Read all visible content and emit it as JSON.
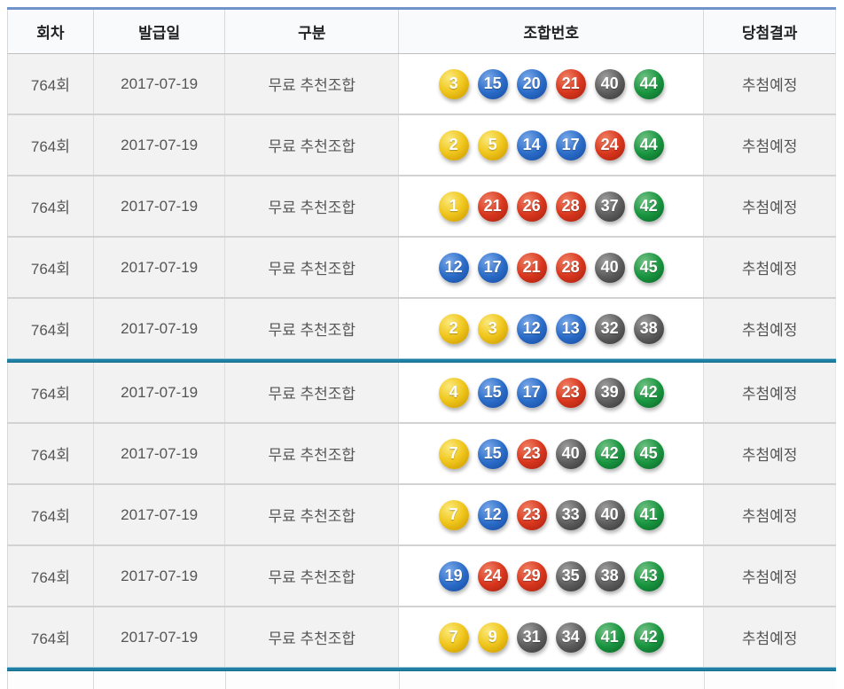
{
  "table": {
    "columns": [
      {
        "key": "round",
        "label": "회차"
      },
      {
        "key": "issue_date",
        "label": "발급일"
      },
      {
        "key": "category",
        "label": "구분"
      },
      {
        "key": "combination",
        "label": "조합번호"
      },
      {
        "key": "result",
        "label": "당첨결과"
      }
    ],
    "rows": [
      {
        "round": "764회",
        "issue_date": "2017-07-19",
        "category": "무료 추천조합",
        "numbers": [
          3,
          15,
          20,
          21,
          40,
          44
        ],
        "result": "추첨예정"
      },
      {
        "round": "764회",
        "issue_date": "2017-07-19",
        "category": "무료 추천조합",
        "numbers": [
          2,
          5,
          14,
          17,
          24,
          44
        ],
        "result": "추첨예정"
      },
      {
        "round": "764회",
        "issue_date": "2017-07-19",
        "category": "무료 추천조합",
        "numbers": [
          1,
          21,
          26,
          28,
          37,
          42
        ],
        "result": "추첨예정"
      },
      {
        "round": "764회",
        "issue_date": "2017-07-19",
        "category": "무료 추천조합",
        "numbers": [
          12,
          17,
          21,
          28,
          40,
          45
        ],
        "result": "추첨예정"
      },
      {
        "round": "764회",
        "issue_date": "2017-07-19",
        "category": "무료 추천조합",
        "numbers": [
          2,
          3,
          12,
          13,
          32,
          38
        ],
        "result": "추첨예정"
      },
      {
        "round": "764회",
        "issue_date": "2017-07-19",
        "category": "무료 추천조합",
        "numbers": [
          4,
          15,
          17,
          23,
          39,
          42
        ],
        "result": "추첨예정"
      },
      {
        "round": "764회",
        "issue_date": "2017-07-19",
        "category": "무료 추천조합",
        "numbers": [
          7,
          15,
          23,
          40,
          42,
          45
        ],
        "result": "추첨예정"
      },
      {
        "round": "764회",
        "issue_date": "2017-07-19",
        "category": "무료 추천조합",
        "numbers": [
          7,
          12,
          23,
          33,
          40,
          41
        ],
        "result": "추첨예정"
      },
      {
        "round": "764회",
        "issue_date": "2017-07-19",
        "category": "무료 추천조합",
        "numbers": [
          19,
          24,
          29,
          35,
          38,
          43
        ],
        "result": "추첨예정"
      },
      {
        "round": "764회",
        "issue_date": "2017-07-19",
        "category": "무료 추천조합",
        "numbers": [
          7,
          9,
          31,
          34,
          41,
          42
        ],
        "result": "추첨예정"
      }
    ],
    "group_size": 5
  },
  "ball_color_ranges": [
    {
      "min": 1,
      "max": 10,
      "name": "yellow",
      "hex": "#f0c71e"
    },
    {
      "min": 11,
      "max": 20,
      "name": "blue",
      "hex": "#2a6cc8"
    },
    {
      "min": 21,
      "max": 30,
      "name": "red",
      "hex": "#d8361d"
    },
    {
      "min": 31,
      "max": 40,
      "name": "gray",
      "hex": "#5d5d5d"
    },
    {
      "min": 41,
      "max": 45,
      "name": "green",
      "hex": "#199540"
    }
  ],
  "colors": {
    "top_border": "#7193cc",
    "group_divider": "#1f7fa4",
    "header_bg": "#f8fafc",
    "cell_bg": "#f2f2f2",
    "header_text": "#222222",
    "cell_text": "#555555"
  }
}
